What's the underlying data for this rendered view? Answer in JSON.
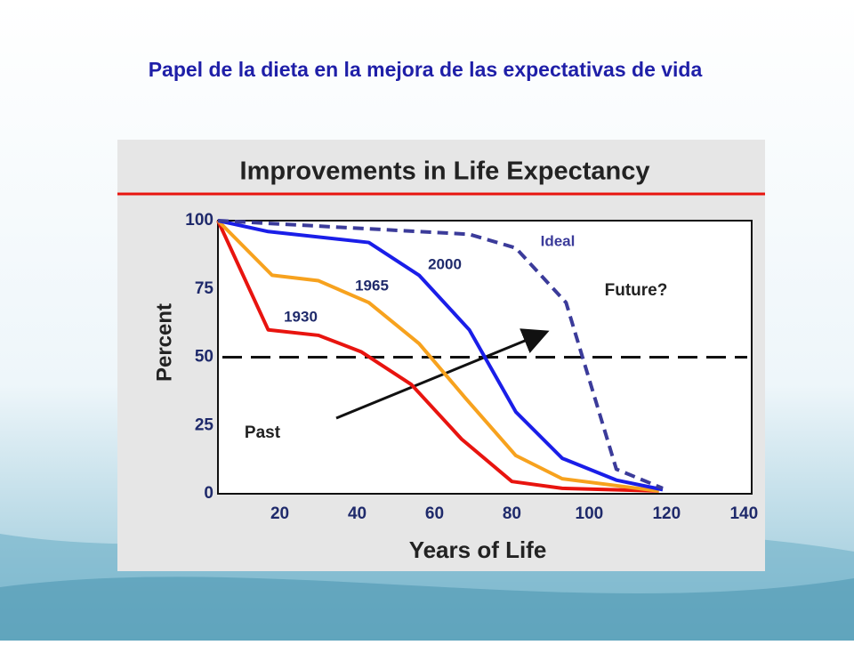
{
  "slide_title": "Papel de la dieta en la mejora de las expectativas de vida",
  "chart_data": {
    "type": "line",
    "title": "Improvements in Life Expectancy",
    "x_label": "Years of Life",
    "y_label": "Percent",
    "xlim": [
      4,
      142
    ],
    "ylim": [
      0,
      100
    ],
    "xticks": [
      20,
      40,
      60,
      80,
      100,
      120,
      140
    ],
    "yticks": [
      0,
      25,
      50,
      75,
      100
    ],
    "reference_line": 50,
    "annotations": [
      "Past",
      "Future?"
    ],
    "series": [
      {
        "name": "1930",
        "color": "#e8140f",
        "dashed": false,
        "x": [
          4,
          17,
          30,
          41,
          54,
          67,
          80,
          93,
          118
        ],
        "values": [
          100,
          60,
          58,
          52,
          40,
          20,
          4.5,
          2,
          1
        ]
      },
      {
        "name": "1965",
        "color": "#f7a21e",
        "dashed": false,
        "x": [
          4,
          18,
          30,
          43,
          56,
          68,
          81,
          93,
          118
        ],
        "values": [
          100,
          80,
          78,
          70,
          55,
          35,
          14,
          5.5,
          1
        ]
      },
      {
        "name": "2000",
        "color": "#1a1ee8",
        "dashed": false,
        "x": [
          4,
          17,
          43,
          56,
          69,
          81,
          93,
          107,
          119
        ],
        "values": [
          100,
          96,
          92,
          80,
          60,
          30,
          13,
          5,
          1.5
        ]
      },
      {
        "name": "Ideal",
        "color": "#3b3b9a",
        "dashed": true,
        "x": [
          4,
          69,
          81,
          94,
          107,
          119
        ],
        "values": [
          100,
          95,
          90,
          70,
          9,
          2
        ]
      }
    ]
  }
}
